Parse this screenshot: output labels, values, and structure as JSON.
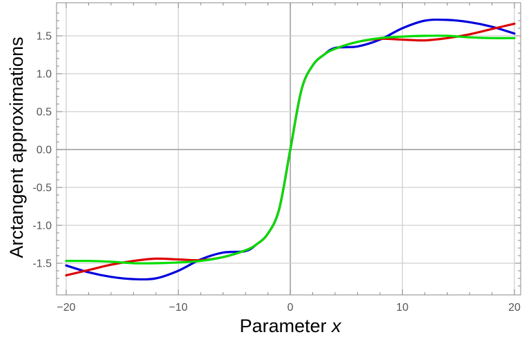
{
  "chart_data": {
    "type": "line",
    "xlabel": "Parameter ",
    "xlabel_var": "x",
    "ylabel": "Arctangent approximations",
    "xlim": [
      -20,
      20
    ],
    "ylim": [
      -1.9,
      1.9
    ],
    "x_ticks": [
      -20,
      -10,
      0,
      10,
      20
    ],
    "x_tick_labels": [
      "−20",
      "−10",
      "0",
      "10",
      "20"
    ],
    "y_ticks": [
      -1.5,
      -1.0,
      -0.5,
      0.0,
      0.5,
      1.0,
      1.5
    ],
    "y_tick_labels": [
      "-1.5",
      "-1.0",
      "-0.5",
      "0.0",
      "0.5",
      "1.0",
      "1.5"
    ],
    "grid": true,
    "x": [
      -20,
      -18,
      -16,
      -14,
      -12,
      -10,
      -8,
      -6,
      -4,
      -3,
      -2,
      -1,
      0,
      1,
      2,
      3,
      4,
      6,
      8,
      10,
      12,
      14,
      16,
      18,
      20
    ],
    "series": [
      {
        "color": "#0000dd",
        "values": [
          -1.53,
          -1.62,
          -1.68,
          -1.71,
          -1.7,
          -1.6,
          -1.45,
          -1.36,
          -1.34,
          -1.25,
          -1.11,
          -0.79,
          0.0,
          0.79,
          1.11,
          1.25,
          1.34,
          1.36,
          1.45,
          1.6,
          1.7,
          1.71,
          1.68,
          1.62,
          1.53
        ]
      },
      {
        "color": "#dd0000",
        "values": [
          -1.66,
          -1.59,
          -1.52,
          -1.47,
          -1.44,
          -1.45,
          -1.46,
          -1.42,
          -1.33,
          -1.25,
          -1.11,
          -0.79,
          0.0,
          0.79,
          1.11,
          1.25,
          1.33,
          1.42,
          1.46,
          1.45,
          1.44,
          1.47,
          1.52,
          1.59,
          1.66
        ]
      },
      {
        "color": "#00dd00",
        "values": [
          -1.47,
          -1.47,
          -1.48,
          -1.5,
          -1.5,
          -1.49,
          -1.47,
          -1.42,
          -1.33,
          -1.25,
          -1.11,
          -0.79,
          0.0,
          0.79,
          1.11,
          1.25,
          1.33,
          1.42,
          1.47,
          1.49,
          1.5,
          1.5,
          1.48,
          1.47,
          1.47
        ]
      }
    ]
  }
}
